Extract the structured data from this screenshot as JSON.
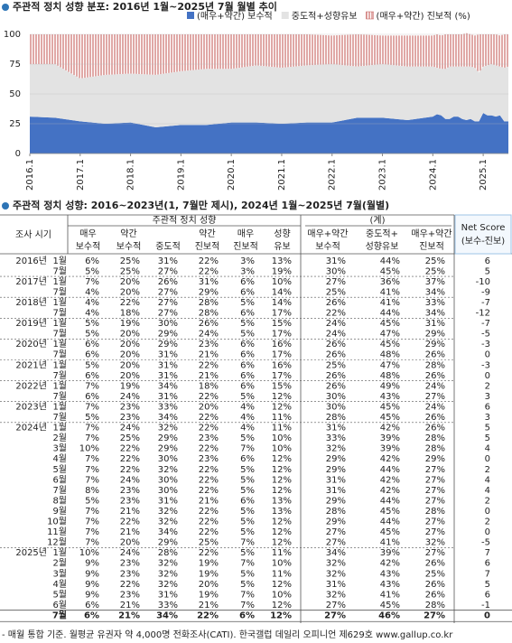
{
  "chart_data": {
    "type": "area",
    "title": "주관적 정치 성향 분포: 2016년 1월~2025년 7월 월별 추이",
    "x": [
      "2016.1",
      "2016.7",
      "2017.1",
      "2017.7",
      "2018.1",
      "2018.7",
      "2019.1",
      "2019.7",
      "2020.1",
      "2020.7",
      "2021.1",
      "2021.7",
      "2022.1",
      "2022.7",
      "2023.1",
      "2023.7",
      "2024.1",
      "2024.2",
      "2024.3",
      "2024.4",
      "2024.5",
      "2024.6",
      "2024.7",
      "2024.8",
      "2024.9",
      "2024.10",
      "2024.11",
      "2024.12",
      "2025.1",
      "2025.2",
      "2025.3",
      "2025.4",
      "2025.5",
      "2025.6",
      "2025.7"
    ],
    "series": [
      {
        "name": "(매우+약간) 보수적",
        "color": "#4472c4",
        "values": [
          31,
          30,
          27,
          25,
          26,
          22,
          24,
          24,
          26,
          26,
          25,
          26,
          26,
          30,
          30,
          28,
          31,
          33,
          32,
          29,
          29,
          31,
          31,
          29,
          28,
          29,
          27,
          27,
          34,
          32,
          32,
          31,
          32,
          27,
          27
        ]
      },
      {
        "name": "중도적+성향유보",
        "color": "#e3e3e3",
        "values": [
          44,
          45,
          36,
          41,
          41,
          44,
          45,
          47,
          45,
          48,
          47,
          48,
          49,
          43,
          45,
          45,
          42,
          39,
          39,
          42,
          44,
          42,
          42,
          44,
          45,
          44,
          45,
          41,
          39,
          42,
          43,
          43,
          41,
          45,
          46
        ]
      },
      {
        "name": "(매우+약간) 진보적 (%)",
        "color": "#c0504d",
        "pattern": "stripes",
        "values": [
          25,
          25,
          37,
          34,
          33,
          34,
          31,
          29,
          29,
          26,
          28,
          26,
          24,
          27,
          24,
          26,
          26,
          28,
          28,
          29,
          27,
          27,
          27,
          27,
          28,
          27,
          27,
          32,
          27,
          26,
          25,
          26,
          26,
          28,
          27
        ]
      }
    ],
    "xlim": [
      "2016.1",
      "2025.7"
    ],
    "xticks": [
      "2016.1",
      "2017.1",
      "2018.1",
      "2019.1",
      "2020.1",
      "2021.1",
      "2022.1",
      "2023.1",
      "2024.1",
      "2025.1"
    ],
    "ylim": [
      0,
      100
    ],
    "yticks": [
      0,
      25,
      50,
      75,
      100
    ],
    "grid": true
  },
  "table": {
    "title": "주관적 정치 성향: 2016~2023년(1, 7월만 제시), 2024년 1월~2025년 7월(월별)",
    "header": {
      "period": "조사 시기",
      "group1": "주관적 정치 성향",
      "group2": "(계)",
      "columns": [
        [
          "매우",
          "보수적"
        ],
        [
          "약간",
          "보수적"
        ],
        [
          "중도적"
        ],
        [
          "약간",
          "진보적"
        ],
        [
          "매우",
          "진보적"
        ],
        [
          "성향",
          "유보"
        ],
        [
          "매우+약간",
          "보수적"
        ],
        [
          "중도적+",
          "성향유보"
        ],
        [
          "매우+약간",
          "진보적"
        ]
      ],
      "net": [
        "Net Score",
        "(보수-진보)"
      ]
    },
    "rows": [
      {
        "year": "2016년",
        "month": "1월",
        "cells": [
          "6%",
          "25%",
          "31%",
          "22%",
          "3%",
          "13%",
          "31%",
          "44%",
          "25%"
        ],
        "net": 6
      },
      {
        "month": "7월",
        "cells": [
          "5%",
          "25%",
          "27%",
          "22%",
          "3%",
          "19%",
          "30%",
          "45%",
          "25%"
        ],
        "net": 5
      },
      {
        "year": "2017년",
        "month": "1월",
        "cells": [
          "7%",
          "20%",
          "26%",
          "31%",
          "6%",
          "10%",
          "27%",
          "36%",
          "37%"
        ],
        "net": -10
      },
      {
        "month": "7월",
        "cells": [
          "4%",
          "20%",
          "27%",
          "29%",
          "6%",
          "14%",
          "25%",
          "41%",
          "34%"
        ],
        "net": -9
      },
      {
        "year": "2018년",
        "month": "1월",
        "cells": [
          "4%",
          "22%",
          "27%",
          "28%",
          "5%",
          "14%",
          "26%",
          "41%",
          "33%"
        ],
        "net": -7
      },
      {
        "month": "7월",
        "cells": [
          "4%",
          "18%",
          "27%",
          "28%",
          "6%",
          "17%",
          "22%",
          "44%",
          "34%"
        ],
        "net": -12
      },
      {
        "year": "2019년",
        "month": "1월",
        "cells": [
          "5%",
          "19%",
          "30%",
          "26%",
          "5%",
          "15%",
          "24%",
          "45%",
          "31%"
        ],
        "net": -7
      },
      {
        "month": "7월",
        "cells": [
          "5%",
          "20%",
          "29%",
          "24%",
          "5%",
          "17%",
          "24%",
          "47%",
          "29%"
        ],
        "net": -5
      },
      {
        "year": "2020년",
        "month": "1월",
        "cells": [
          "6%",
          "20%",
          "29%",
          "23%",
          "6%",
          "16%",
          "26%",
          "45%",
          "29%"
        ],
        "net": -3
      },
      {
        "month": "7월",
        "cells": [
          "6%",
          "20%",
          "31%",
          "21%",
          "6%",
          "17%",
          "26%",
          "48%",
          "26%"
        ],
        "net": 0
      },
      {
        "year": "2021년",
        "month": "1월",
        "cells": [
          "5%",
          "20%",
          "31%",
          "22%",
          "6%",
          "16%",
          "25%",
          "47%",
          "28%"
        ],
        "net": -3
      },
      {
        "month": "7월",
        "cells": [
          "6%",
          "20%",
          "31%",
          "21%",
          "6%",
          "17%",
          "26%",
          "48%",
          "26%"
        ],
        "net": 0
      },
      {
        "year": "2022년",
        "month": "1월",
        "cells": [
          "7%",
          "19%",
          "34%",
          "18%",
          "6%",
          "15%",
          "26%",
          "49%",
          "24%"
        ],
        "net": 2
      },
      {
        "month": "7월",
        "cells": [
          "6%",
          "24%",
          "31%",
          "22%",
          "5%",
          "12%",
          "30%",
          "43%",
          "27%"
        ],
        "net": 3
      },
      {
        "year": "2023년",
        "month": "1월",
        "cells": [
          "7%",
          "23%",
          "33%",
          "20%",
          "4%",
          "12%",
          "30%",
          "45%",
          "24%"
        ],
        "net": 6
      },
      {
        "month": "7월",
        "cells": [
          "5%",
          "23%",
          "34%",
          "22%",
          "4%",
          "11%",
          "28%",
          "45%",
          "26%"
        ],
        "net": 3
      },
      {
        "year": "2024년",
        "month": "1월",
        "cells": [
          "7%",
          "24%",
          "32%",
          "22%",
          "4%",
          "11%",
          "31%",
          "42%",
          "26%"
        ],
        "net": 5
      },
      {
        "month": "2월",
        "cells": [
          "7%",
          "25%",
          "29%",
          "23%",
          "5%",
          "10%",
          "33%",
          "39%",
          "28%"
        ],
        "net": 5
      },
      {
        "month": "3월",
        "cells": [
          "10%",
          "22%",
          "29%",
          "22%",
          "7%",
          "10%",
          "32%",
          "39%",
          "28%"
        ],
        "net": 4
      },
      {
        "month": "4월",
        "cells": [
          "7%",
          "22%",
          "30%",
          "23%",
          "6%",
          "12%",
          "29%",
          "42%",
          "29%"
        ],
        "net": 0
      },
      {
        "month": "5월",
        "cells": [
          "7%",
          "22%",
          "32%",
          "22%",
          "5%",
          "12%",
          "29%",
          "44%",
          "27%"
        ],
        "net": 2
      },
      {
        "month": "6월",
        "cells": [
          "7%",
          "24%",
          "30%",
          "22%",
          "5%",
          "12%",
          "31%",
          "42%",
          "27%"
        ],
        "net": 4
      },
      {
        "month": "7월",
        "cells": [
          "8%",
          "23%",
          "30%",
          "22%",
          "5%",
          "12%",
          "31%",
          "42%",
          "27%"
        ],
        "net": 4
      },
      {
        "month": "8월",
        "cells": [
          "5%",
          "23%",
          "31%",
          "21%",
          "6%",
          "13%",
          "29%",
          "44%",
          "27%"
        ],
        "net": 2
      },
      {
        "month": "9월",
        "cells": [
          "7%",
          "21%",
          "32%",
          "22%",
          "5%",
          "13%",
          "28%",
          "45%",
          "28%"
        ],
        "net": 0
      },
      {
        "month": "10월",
        "cells": [
          "7%",
          "22%",
          "32%",
          "22%",
          "5%",
          "12%",
          "29%",
          "44%",
          "27%"
        ],
        "net": 2
      },
      {
        "month": "11월",
        "cells": [
          "7%",
          "21%",
          "34%",
          "22%",
          "5%",
          "12%",
          "27%",
          "45%",
          "27%"
        ],
        "net": 0
      },
      {
        "month": "12월",
        "cells": [
          "7%",
          "20%",
          "29%",
          "25%",
          "7%",
          "12%",
          "27%",
          "41%",
          "32%"
        ],
        "net": -5
      },
      {
        "year": "2025년",
        "month": "1월",
        "cells": [
          "10%",
          "24%",
          "28%",
          "22%",
          "5%",
          "11%",
          "34%",
          "39%",
          "27%"
        ],
        "net": 7
      },
      {
        "month": "2월",
        "cells": [
          "9%",
          "23%",
          "32%",
          "19%",
          "7%",
          "10%",
          "32%",
          "42%",
          "26%"
        ],
        "net": 6
      },
      {
        "month": "3월",
        "cells": [
          "9%",
          "23%",
          "32%",
          "19%",
          "5%",
          "11%",
          "32%",
          "43%",
          "25%"
        ],
        "net": 7
      },
      {
        "month": "4월",
        "cells": [
          "9%",
          "22%",
          "32%",
          "20%",
          "5%",
          "12%",
          "31%",
          "43%",
          "26%"
        ],
        "net": 5
      },
      {
        "month": "5월",
        "cells": [
          "9%",
          "23%",
          "31%",
          "19%",
          "7%",
          "10%",
          "32%",
          "41%",
          "26%"
        ],
        "net": 6
      },
      {
        "month": "6월",
        "cells": [
          "6%",
          "21%",
          "33%",
          "21%",
          "7%",
          "12%",
          "27%",
          "45%",
          "28%"
        ],
        "net": -1
      },
      {
        "month": "7월",
        "cells": [
          "6%",
          "21%",
          "34%",
          "22%",
          "6%",
          "12%",
          "27%",
          "46%",
          "27%"
        ],
        "net": 0
      }
    ],
    "footer": "- 매월 통합 기준. 월평균 유권자 약 4,000명 전화조사(CATI). 한국갤럽 데일리 오피니언 제629호 www.gallup.co.kr"
  }
}
